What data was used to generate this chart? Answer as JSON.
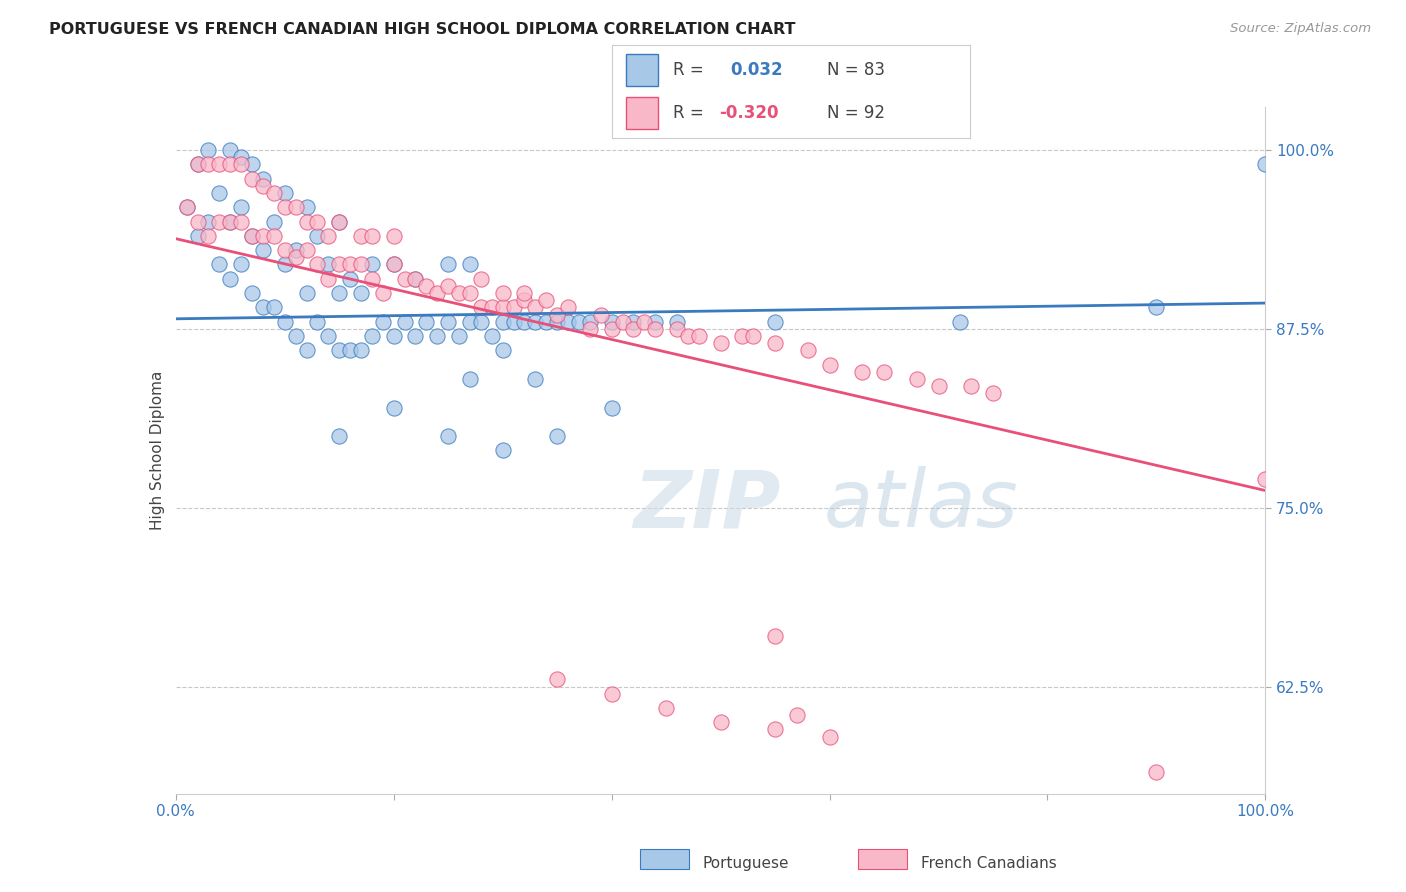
{
  "title": "PORTUGUESE VS FRENCH CANADIAN HIGH SCHOOL DIPLOMA CORRELATION CHART",
  "source": "Source: ZipAtlas.com",
  "ylabel": "High School Diploma",
  "xlim": [
    0.0,
    1.0
  ],
  "ylim": [
    0.55,
    1.03
  ],
  "yticks": [
    0.625,
    0.75,
    0.875,
    1.0
  ],
  "ytick_labels": [
    "62.5%",
    "75.0%",
    "87.5%",
    "100.0%"
  ],
  "xticks": [
    0.0,
    0.2,
    0.4,
    0.6,
    0.8,
    1.0
  ],
  "xtick_labels": [
    "0.0%",
    "",
    "",
    "",
    "",
    "100.0%"
  ],
  "color_blue": "#a8c8e8",
  "color_pink": "#f8b8c8",
  "trendline_blue": "#3a7abf",
  "trendline_pink": "#e8507a",
  "background": "#ffffff",
  "grid_color": "#c8c8c8",
  "watermark": "ZIPatlas",
  "blue_points_x": [
    0.01,
    0.02,
    0.02,
    0.03,
    0.03,
    0.04,
    0.04,
    0.05,
    0.05,
    0.05,
    0.06,
    0.06,
    0.06,
    0.07,
    0.07,
    0.07,
    0.08,
    0.08,
    0.08,
    0.09,
    0.09,
    0.1,
    0.1,
    0.1,
    0.11,
    0.11,
    0.12,
    0.12,
    0.12,
    0.13,
    0.13,
    0.14,
    0.14,
    0.15,
    0.15,
    0.15,
    0.16,
    0.16,
    0.17,
    0.17,
    0.18,
    0.18,
    0.19,
    0.2,
    0.2,
    0.21,
    0.22,
    0.22,
    0.23,
    0.24,
    0.25,
    0.25,
    0.26,
    0.27,
    0.27,
    0.28,
    0.29,
    0.3,
    0.31,
    0.32,
    0.33,
    0.34,
    0.35,
    0.36,
    0.37,
    0.38,
    0.4,
    0.42,
    0.44,
    0.46,
    0.15,
    0.2,
    0.25,
    0.3,
    0.35,
    0.4,
    0.27,
    0.3,
    0.33,
    0.55,
    0.72,
    0.9,
    1.0
  ],
  "blue_points_y": [
    0.96,
    0.94,
    0.99,
    0.95,
    1.0,
    0.92,
    0.97,
    0.91,
    0.95,
    1.0,
    0.92,
    0.96,
    0.995,
    0.9,
    0.94,
    0.99,
    0.89,
    0.93,
    0.98,
    0.89,
    0.95,
    0.88,
    0.92,
    0.97,
    0.87,
    0.93,
    0.86,
    0.9,
    0.96,
    0.88,
    0.94,
    0.87,
    0.92,
    0.86,
    0.9,
    0.95,
    0.86,
    0.91,
    0.86,
    0.9,
    0.87,
    0.92,
    0.88,
    0.87,
    0.92,
    0.88,
    0.87,
    0.91,
    0.88,
    0.87,
    0.88,
    0.92,
    0.87,
    0.88,
    0.92,
    0.88,
    0.87,
    0.88,
    0.88,
    0.88,
    0.88,
    0.88,
    0.88,
    0.88,
    0.88,
    0.88,
    0.88,
    0.88,
    0.88,
    0.88,
    0.8,
    0.82,
    0.8,
    0.79,
    0.8,
    0.82,
    0.84,
    0.86,
    0.84,
    0.88,
    0.88,
    0.89,
    0.99
  ],
  "pink_points_x": [
    0.01,
    0.02,
    0.02,
    0.03,
    0.03,
    0.04,
    0.04,
    0.05,
    0.05,
    0.06,
    0.06,
    0.07,
    0.07,
    0.08,
    0.08,
    0.09,
    0.09,
    0.1,
    0.1,
    0.11,
    0.11,
    0.12,
    0.12,
    0.13,
    0.13,
    0.14,
    0.14,
    0.15,
    0.15,
    0.16,
    0.17,
    0.17,
    0.18,
    0.18,
    0.19,
    0.2,
    0.2,
    0.21,
    0.22,
    0.23,
    0.24,
    0.25,
    0.26,
    0.27,
    0.28,
    0.28,
    0.29,
    0.3,
    0.3,
    0.31,
    0.32,
    0.32,
    0.33,
    0.34,
    0.35,
    0.36,
    0.38,
    0.39,
    0.4,
    0.41,
    0.42,
    0.43,
    0.44,
    0.46,
    0.47,
    0.48,
    0.5,
    0.52,
    0.53,
    0.55,
    0.58,
    0.6,
    0.63,
    0.65,
    0.68,
    0.7,
    0.73,
    0.75,
    0.35,
    0.4,
    0.45,
    0.5,
    0.55,
    0.6,
    0.55,
    0.57,
    0.9,
    1.0
  ],
  "pink_points_y": [
    0.96,
    0.95,
    0.99,
    0.94,
    0.99,
    0.95,
    0.99,
    0.95,
    0.99,
    0.95,
    0.99,
    0.94,
    0.98,
    0.94,
    0.975,
    0.94,
    0.97,
    0.93,
    0.96,
    0.925,
    0.96,
    0.93,
    0.95,
    0.92,
    0.95,
    0.91,
    0.94,
    0.92,
    0.95,
    0.92,
    0.92,
    0.94,
    0.91,
    0.94,
    0.9,
    0.92,
    0.94,
    0.91,
    0.91,
    0.905,
    0.9,
    0.905,
    0.9,
    0.9,
    0.89,
    0.91,
    0.89,
    0.89,
    0.9,
    0.89,
    0.895,
    0.9,
    0.89,
    0.895,
    0.885,
    0.89,
    0.875,
    0.885,
    0.875,
    0.88,
    0.875,
    0.88,
    0.875,
    0.875,
    0.87,
    0.87,
    0.865,
    0.87,
    0.87,
    0.865,
    0.86,
    0.85,
    0.845,
    0.845,
    0.84,
    0.835,
    0.835,
    0.83,
    0.63,
    0.62,
    0.61,
    0.6,
    0.595,
    0.59,
    0.66,
    0.605,
    0.565,
    0.77
  ],
  "trend_blue_start_y": 0.882,
  "trend_blue_end_y": 0.893,
  "trend_pink_start_y": 0.938,
  "trend_pink_end_y": 0.762
}
